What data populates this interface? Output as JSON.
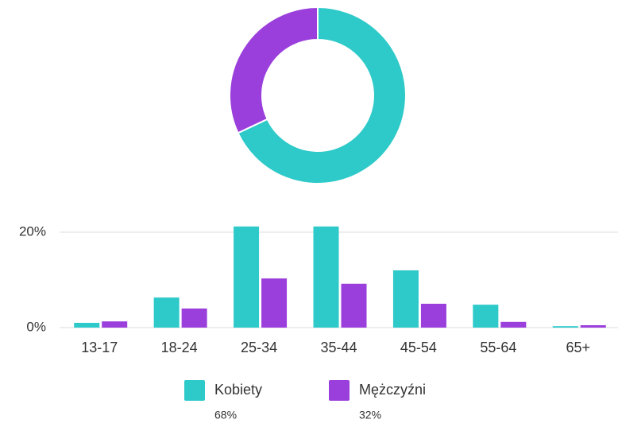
{
  "chart_data": [
    {
      "type": "pie",
      "categories": [
        "Kobiety",
        "Mężczyźni"
      ],
      "values": [
        68,
        32
      ],
      "value_labels": [
        "68%",
        "32%"
      ],
      "colors": [
        "#2ec9c9",
        "#9b3fdc"
      ]
    },
    {
      "type": "bar",
      "categories": [
        "13-17",
        "18-24",
        "25-34",
        "35-44",
        "45-54",
        "55-64",
        "65+"
      ],
      "series": [
        {
          "color": "#2ec9c9",
          "values": [
            1.0,
            6.3,
            21.2,
            21.2,
            12.0,
            4.8,
            0.3
          ]
        },
        {
          "color": "#9b3fdc",
          "values": [
            1.3,
            4.0,
            10.3,
            9.2,
            5.0,
            1.2,
            0.5
          ]
        }
      ],
      "ylim": [
        0,
        22
      ],
      "yticks": [
        {
          "value": 0,
          "label": "0%"
        },
        {
          "value": 20,
          "label": "20%"
        }
      ],
      "grid": true
    }
  ]
}
